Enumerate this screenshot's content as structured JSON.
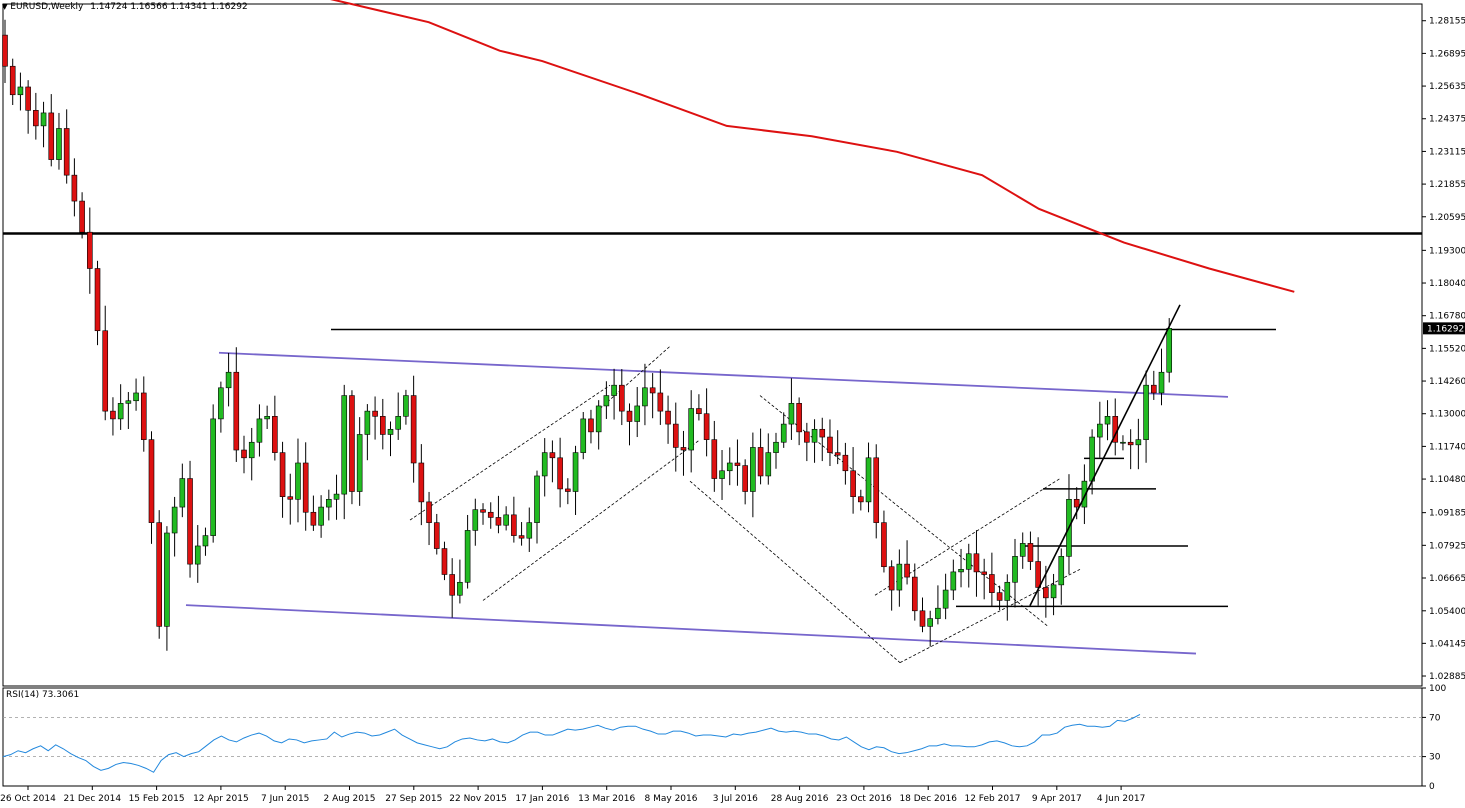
{
  "header": {
    "symbol": "EURUSD,Weekly",
    "ohlc": "1.14724 1.16566 1.14341 1.16292"
  },
  "rsi_header": {
    "label": "RSI(14) 73.3061"
  },
  "current_price_label": "1.16292",
  "colors": {
    "bull": "#22bb22",
    "bear": "#dd1111",
    "ma": "#dd1111",
    "channel": "#7766cc",
    "rsi": "#2288dd",
    "level": "#000000"
  },
  "chart_data": [
    {
      "type": "candlestick",
      "title": "EURUSD,Weekly",
      "y_ticks": [
        "1.28155",
        "1.26895",
        "1.25635",
        "1.24375",
        "1.23115",
        "1.21855",
        "1.20595",
        "1.19300",
        "1.18040",
        "1.16780",
        "1.15520",
        "1.14260",
        "1.13000",
        "1.11740",
        "1.10480",
        "1.09185",
        "1.07925",
        "1.06665",
        "1.05400",
        "1.04145",
        "1.02885"
      ],
      "x_ticks": [
        "26 Oct 2014",
        "21 Dec 2014",
        "15 Feb 2015",
        "12 Apr 2015",
        "7 Jun 2015",
        "2 Aug 2015",
        "27 Sep 2015",
        "22 Nov 2015",
        "17 Jan 2016",
        "13 Mar 2016",
        "8 May 2016",
        "3 Jul 2016",
        "28 Aug 2016",
        "23 Oct 2016",
        "18 Dec 2016",
        "12 Feb 2017",
        "9 Apr 2017",
        "4 Jun 2017"
      ],
      "ylim": [
        1.025,
        1.288
      ],
      "last_close": 1.16292,
      "series_close": [
        1.264,
        1.253,
        1.256,
        1.247,
        1.241,
        1.246,
        1.228,
        1.24,
        1.222,
        1.212,
        1.2,
        1.186,
        1.162,
        1.131,
        1.128,
        1.134,
        1.135,
        1.138,
        1.12,
        1.088,
        1.048,
        1.084,
        1.094,
        1.105,
        1.072,
        1.079,
        1.083,
        1.128,
        1.14,
        1.146,
        1.116,
        1.113,
        1.119,
        1.128,
        1.129,
        1.115,
        1.098,
        1.097,
        1.111,
        1.092,
        1.087,
        1.094,
        1.097,
        1.099,
        1.137,
        1.1,
        1.122,
        1.131,
        1.129,
        1.122,
        1.124,
        1.129,
        1.137,
        1.111,
        1.096,
        1.088,
        1.078,
        1.068,
        1.06,
        1.065,
        1.085,
        1.093,
        1.092,
        1.09,
        1.087,
        1.091,
        1.083,
        1.082,
        1.088,
        1.106,
        1.115,
        1.113,
        1.101,
        1.1,
        1.115,
        1.128,
        1.123,
        1.133,
        1.137,
        1.141,
        1.131,
        1.127,
        1.133,
        1.14,
        1.138,
        1.131,
        1.126,
        1.117,
        1.116,
        1.132,
        1.13,
        1.12,
        1.105,
        1.108,
        1.111,
        1.11,
        1.1,
        1.117,
        1.106,
        1.115,
        1.119,
        1.126,
        1.134,
        1.123,
        1.119,
        1.124,
        1.121,
        1.115,
        1.114,
        1.108,
        1.098,
        1.096,
        1.113,
        1.088,
        1.071,
        1.062,
        1.072,
        1.067,
        1.054,
        1.048,
        1.051,
        1.055,
        1.062,
        1.069,
        1.07,
        1.076,
        1.069,
        1.068,
        1.061,
        1.058,
        1.065,
        1.075,
        1.08,
        1.073,
        1.063,
        1.059,
        1.064,
        1.075,
        1.097,
        1.094,
        1.104,
        1.121,
        1.126,
        1.129,
        1.119,
        1.119,
        1.118,
        1.12,
        1.141,
        1.138,
        1.146,
        1.1629
      ],
      "ma_series": [
        {
          "t": 0.23,
          "v": 1.29
        },
        {
          "t": 0.3,
          "v": 1.281
        },
        {
          "t": 0.35,
          "v": 1.27
        },
        {
          "t": 0.38,
          "v": 1.266
        },
        {
          "t": 0.45,
          "v": 1.253
        },
        {
          "t": 0.51,
          "v": 1.241
        },
        {
          "t": 0.57,
          "v": 1.237
        },
        {
          "t": 0.63,
          "v": 1.231
        },
        {
          "t": 0.69,
          "v": 1.222
        },
        {
          "t": 0.73,
          "v": 1.209
        },
        {
          "t": 0.79,
          "v": 1.196
        },
        {
          "t": 0.85,
          "v": 1.186
        },
        {
          "t": 0.91,
          "v": 1.177
        }
      ],
      "rsi": {
        "name": "RSI(14)",
        "last": 73.3061,
        "levels": [
          70,
          30
        ],
        "ylim": [
          0,
          100
        ],
        "y_ticks": [
          "100",
          "70",
          "30",
          "0"
        ],
        "values": [
          30,
          32,
          36,
          34,
          38,
          41,
          36,
          42,
          38,
          33,
          29,
          26,
          20,
          16,
          18,
          22,
          24,
          23,
          21,
          18,
          14,
          26,
          32,
          34,
          30,
          33,
          35,
          41,
          47,
          51,
          47,
          45,
          49,
          52,
          54,
          51,
          46,
          44,
          48,
          47,
          44,
          46,
          47,
          48,
          55,
          50,
          53,
          55,
          54,
          51,
          52,
          55,
          58,
          52,
          48,
          44,
          42,
          40,
          38,
          40,
          45,
          48,
          49,
          47,
          46,
          48,
          45,
          44,
          47,
          52,
          55,
          55,
          52,
          52,
          55,
          58,
          57,
          58,
          60,
          62,
          59,
          57,
          60,
          61,
          61,
          58,
          56,
          53,
          53,
          56,
          56,
          54,
          51,
          52,
          52,
          51,
          50,
          53,
          52,
          54,
          55,
          57,
          59,
          56,
          55,
          56,
          55,
          53,
          53,
          51,
          48,
          47,
          50,
          45,
          40,
          37,
          40,
          39,
          35,
          33,
          34,
          36,
          38,
          41,
          41,
          43,
          41,
          41,
          40,
          40,
          42,
          45,
          46,
          44,
          41,
          40,
          41,
          45,
          52,
          52,
          54,
          60,
          62,
          63,
          61,
          61,
          60,
          61,
          67,
          66,
          69,
          73
        ]
      }
    }
  ]
}
